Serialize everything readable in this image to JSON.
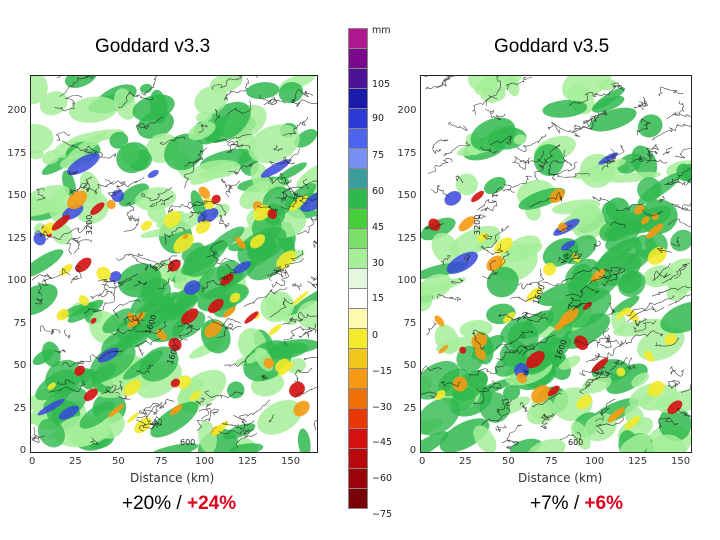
{
  "left_panel": {
    "title": "Goddard v3.3",
    "stat_a": "+20%",
    "stat_sep": " / ",
    "stat_b": "+24%",
    "xlabel": "Distance (km)",
    "contour_labels": [
      "3200",
      "1600",
      "1600",
      "600"
    ]
  },
  "right_panel": {
    "title": "Goddard v3.5",
    "stat_a": "+7%",
    "stat_sep": " / ",
    "stat_b": "+6%",
    "xlabel": "Distance (km)",
    "contour_labels": [
      "3200",
      "1600",
      "1600",
      "600"
    ]
  },
  "axes": {
    "x_ticks": [
      "0",
      "25",
      "50",
      "75",
      "100",
      "125",
      "150"
    ],
    "y_ticks": [
      "0",
      "25",
      "50",
      "75",
      "100",
      "125",
      "150",
      "175",
      "200"
    ]
  },
  "colorbar": {
    "unit": "mm",
    "labels": [
      "105",
      "90",
      "75",
      "60",
      "45",
      "30",
      "15",
      "0",
      "-15",
      "-30",
      "-45",
      "-60",
      "-75"
    ],
    "colors": [
      "#b01890",
      "#7a0a8a",
      "#4b1296",
      "#1a1aa8",
      "#2c3ad6",
      "#4c64ee",
      "#7890f2",
      "#3d9c9c",
      "#2fb84e",
      "#46cf3a",
      "#7ae06a",
      "#a6ee9a",
      "#e4f8e0",
      "#ffffff",
      "#fffab0",
      "#f2ea2a",
      "#f2c81c",
      "#f59a12",
      "#f07008",
      "#e83808",
      "#d41010",
      "#b8080c",
      "#98040a",
      "#7a0008"
    ]
  },
  "colors": {
    "green_dark": "#2fb84e",
    "green_light": "#a6ee9a",
    "blue": "#3848dc",
    "yellow": "#f2ea2a",
    "orange": "#f59a12",
    "red": "#d41010",
    "contour": "#222222",
    "accent_red": "#e0001b"
  }
}
